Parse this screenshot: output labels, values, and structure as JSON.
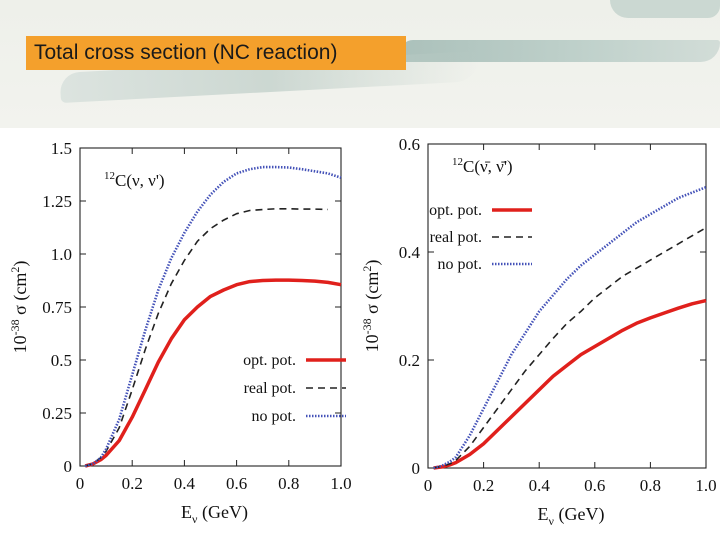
{
  "header": {
    "title": "Total cross section (NC reaction)"
  },
  "colors": {
    "opt": "#e0201c",
    "real": "#222222",
    "nopot": "#4452b8",
    "banner_accent": "#f4a02c"
  },
  "chart_data": [
    {
      "type": "line",
      "annotation": "12C(ν, ν')",
      "annotation_sup": "12",
      "annotation_main": "C(ν, ν')",
      "xlabel": "E",
      "xlabel_sub": "ν",
      "xlabel_unit": " (GeV)",
      "ylabel": "10⁻³⁸ σ (cm²)",
      "ylabel_parts": [
        "10",
        "-38",
        " σ (cm",
        "2",
        ")"
      ],
      "xlim": [
        0,
        1.0
      ],
      "ylim": [
        0,
        1.5
      ],
      "xticks": [
        "0",
        "0.2",
        "0.4",
        "0.6",
        "0.8",
        "1.0"
      ],
      "yticks": [
        "0",
        "0.25",
        "0.5",
        "0.75",
        "1.0",
        "1.25",
        "1.5"
      ],
      "legend_position": "bottom-right",
      "series": [
        {
          "name": "opt. pot.",
          "style": "solid",
          "x": [
            0.02,
            0.05,
            0.08,
            0.1,
            0.15,
            0.2,
            0.25,
            0.3,
            0.35,
            0.4,
            0.45,
            0.5,
            0.55,
            0.6,
            0.65,
            0.7,
            0.75,
            0.8,
            0.85,
            0.9,
            0.95,
            1.0
          ],
          "y": [
            0.0,
            0.01,
            0.03,
            0.05,
            0.12,
            0.23,
            0.36,
            0.49,
            0.6,
            0.69,
            0.75,
            0.8,
            0.83,
            0.855,
            0.87,
            0.875,
            0.877,
            0.877,
            0.875,
            0.872,
            0.866,
            0.855
          ]
        },
        {
          "name": "real pot.",
          "style": "dashed",
          "x": [
            0.02,
            0.05,
            0.08,
            0.1,
            0.15,
            0.2,
            0.25,
            0.3,
            0.35,
            0.4,
            0.45,
            0.5,
            0.55,
            0.6,
            0.65,
            0.7,
            0.75,
            0.8,
            0.85,
            0.9,
            0.95
          ],
          "y": [
            0.0,
            0.01,
            0.04,
            0.07,
            0.18,
            0.36,
            0.55,
            0.72,
            0.86,
            0.97,
            1.06,
            1.12,
            1.16,
            1.19,
            1.205,
            1.21,
            1.213,
            1.213,
            1.212,
            1.212,
            1.21
          ]
        },
        {
          "name": "no pot.",
          "style": "dotted",
          "x": [
            0.02,
            0.05,
            0.08,
            0.1,
            0.15,
            0.2,
            0.25,
            0.3,
            0.35,
            0.4,
            0.45,
            0.5,
            0.55,
            0.6,
            0.65,
            0.7,
            0.75,
            0.8,
            0.85,
            0.9,
            0.95,
            1.0
          ],
          "y": [
            0.0,
            0.01,
            0.04,
            0.08,
            0.22,
            0.43,
            0.64,
            0.83,
            0.98,
            1.1,
            1.2,
            1.28,
            1.34,
            1.38,
            1.4,
            1.41,
            1.41,
            1.408,
            1.4,
            1.39,
            1.38,
            1.36
          ]
        }
      ]
    },
    {
      "type": "line",
      "annotation": "12C(ν̄, ν̄')",
      "annotation_sup": "12",
      "annotation_main": "C(ν̄, ν̄')",
      "xlabel": "E",
      "xlabel_sub": "ν",
      "xlabel_unit": " (GeV)",
      "ylabel": "10⁻³⁸ σ (cm²)",
      "ylabel_parts": [
        "10",
        "-38",
        " σ (cm",
        "2",
        ")"
      ],
      "xlim": [
        0,
        1.0
      ],
      "ylim": [
        0,
        0.6
      ],
      "xticks": [
        "0",
        "0.2",
        "0.4",
        "0.6",
        "0.8",
        "1.0"
      ],
      "yticks": [
        "0",
        "0.2",
        "0.4",
        "0.6"
      ],
      "legend_position": "top-left",
      "series": [
        {
          "name": "opt. pot.",
          "style": "solid",
          "x": [
            0.02,
            0.05,
            0.08,
            0.1,
            0.15,
            0.2,
            0.25,
            0.3,
            0.35,
            0.4,
            0.45,
            0.5,
            0.55,
            0.6,
            0.65,
            0.7,
            0.75,
            0.8,
            0.85,
            0.9,
            0.95,
            1.0
          ],
          "y": [
            0.0,
            0.002,
            0.006,
            0.01,
            0.025,
            0.045,
            0.07,
            0.095,
            0.12,
            0.145,
            0.17,
            0.19,
            0.21,
            0.225,
            0.24,
            0.255,
            0.268,
            0.278,
            0.287,
            0.296,
            0.304,
            0.31
          ]
        },
        {
          "name": "real pot.",
          "style": "dashed",
          "x": [
            0.02,
            0.05,
            0.08,
            0.1,
            0.15,
            0.2,
            0.25,
            0.3,
            0.35,
            0.4,
            0.45,
            0.5,
            0.55,
            0.6,
            0.65,
            0.7,
            0.75,
            0.8,
            0.85,
            0.9,
            0.95,
            1.0
          ],
          "y": [
            0.0,
            0.003,
            0.008,
            0.014,
            0.04,
            0.075,
            0.11,
            0.145,
            0.18,
            0.21,
            0.24,
            0.268,
            0.29,
            0.315,
            0.335,
            0.355,
            0.37,
            0.385,
            0.4,
            0.415,
            0.43,
            0.445
          ]
        },
        {
          "name": "no pot.",
          "style": "dotted",
          "x": [
            0.02,
            0.05,
            0.08,
            0.1,
            0.15,
            0.2,
            0.25,
            0.3,
            0.35,
            0.4,
            0.45,
            0.5,
            0.55,
            0.6,
            0.65,
            0.7,
            0.75,
            0.8,
            0.85,
            0.9,
            0.95,
            1.0
          ],
          "y": [
            0.0,
            0.004,
            0.012,
            0.02,
            0.06,
            0.11,
            0.16,
            0.21,
            0.25,
            0.29,
            0.32,
            0.35,
            0.375,
            0.395,
            0.415,
            0.435,
            0.455,
            0.47,
            0.485,
            0.5,
            0.51,
            0.52
          ]
        }
      ]
    }
  ]
}
